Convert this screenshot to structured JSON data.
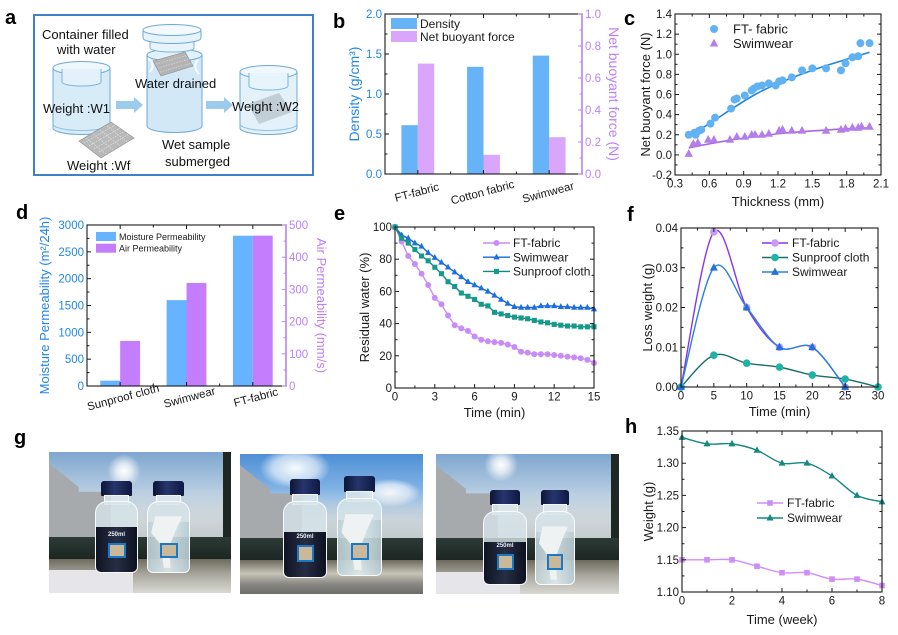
{
  "panel_letters": {
    "a": "a",
    "b": "b",
    "c": "c",
    "d": "d",
    "e": "e",
    "f": "f",
    "g": "g",
    "h": "h"
  },
  "panel_a": {
    "container_line1": "Container filled",
    "container_line2": "with water",
    "water_drained": "Water drained",
    "weight_w1": "Weight :W1",
    "weight_w2": "Weight :W2",
    "wet_sample_line1": "Wet sample",
    "wet_sample_line2": "submerged",
    "weight_wf": "Weight :Wf",
    "colors": {
      "border": "#3f80c6",
      "container": "#d6ebf8",
      "arrow": "#9ccbec",
      "fabric": "#b7b7b7"
    }
  },
  "panel_g": {
    "photos": [
      {
        "bottle_label": "250ml"
      },
      {
        "bottle_label": "250ml"
      },
      {
        "bottle_label": "250ml"
      }
    ]
  },
  "chart_data": [
    {
      "id": "b",
      "type": "bar",
      "title": "",
      "categories": [
        "FT-fabric",
        "Cotton fabric",
        "Swimwear"
      ],
      "series": [
        {
          "name": "Density",
          "axis": "left",
          "values": [
            0.61,
            1.34,
            1.48
          ],
          "color": "#66b3f8"
        },
        {
          "name": "Net buoyant force",
          "axis": "right",
          "values": [
            0.69,
            0.12,
            0.23
          ],
          "color": "#d9a6fb"
        }
      ],
      "xlabel": "",
      "ylabel": "Density (g/cm³)",
      "y2label": "Net buoyant force (N)",
      "ylim": [
        0,
        2.0
      ],
      "y2lim": [
        0,
        1.0
      ],
      "yticks": [
        "0.0",
        "0.5",
        "1.0",
        "1.5",
        "2.0"
      ],
      "y2ticks": [
        "0.0",
        "0.2",
        "0.4",
        "0.6",
        "0.8",
        "1.0"
      ],
      "ycolor": "#2286e6",
      "y2color": "#bb82f6",
      "grid": false,
      "legend": "top-left"
    },
    {
      "id": "c",
      "type": "scatter",
      "title": "",
      "xlabel": "Thickness (mm)",
      "ylabel": "Net buoyant force (N)",
      "xlim": [
        0.3,
        2.1
      ],
      "ylim": [
        -0.2,
        1.4
      ],
      "xticks": [
        "0.3",
        "0.6",
        "0.9",
        "1.2",
        "1.5",
        "1.8",
        "2.1"
      ],
      "yticks": [
        "-0.2",
        "0.0",
        "0.2",
        "0.4",
        "0.6",
        "0.8",
        "1.0",
        "1.2",
        "1.4"
      ],
      "grid": false,
      "legend": "top-left",
      "series": [
        {
          "name": "FT- fabric",
          "marker": "circle",
          "color": "#62b2f3",
          "fit_color": "#2384e0",
          "points": [
            [
              0.42,
              0.2
            ],
            [
              0.47,
              0.22
            ],
            [
              0.48,
              0.2
            ],
            [
              0.51,
              0.24
            ],
            [
              0.53,
              0.25
            ],
            [
              0.61,
              0.31
            ],
            [
              0.65,
              0.37
            ],
            [
              0.79,
              0.46
            ],
            [
              0.82,
              0.55
            ],
            [
              0.84,
              0.56
            ],
            [
              0.91,
              0.59
            ],
            [
              0.97,
              0.64
            ],
            [
              0.99,
              0.66
            ],
            [
              1.02,
              0.68
            ],
            [
              1.06,
              0.69
            ],
            [
              1.12,
              0.71
            ],
            [
              1.18,
              0.69
            ],
            [
              1.21,
              0.73
            ],
            [
              1.24,
              0.74
            ],
            [
              1.32,
              0.77
            ],
            [
              1.41,
              0.84
            ],
            [
              1.5,
              0.86
            ],
            [
              1.62,
              0.86
            ],
            [
              1.75,
              0.84
            ],
            [
              1.79,
              0.91
            ],
            [
              1.85,
              0.97
            ],
            [
              1.9,
              0.98
            ],
            [
              1.92,
              1.11
            ],
            [
              2.0,
              1.11
            ]
          ],
          "fit": [
            [
              0.42,
              0.19
            ],
            [
              0.6,
              0.31
            ],
            [
              0.8,
              0.46
            ],
            [
              1.0,
              0.6
            ],
            [
              1.2,
              0.71
            ],
            [
              1.4,
              0.8
            ],
            [
              1.6,
              0.88
            ],
            [
              1.8,
              0.95
            ],
            [
              2.0,
              1.02
            ]
          ]
        },
        {
          "name": "Swimwear",
          "marker": "triangle",
          "color": "#b57de9",
          "fit_color": "#a56ae4",
          "points": [
            [
              0.42,
              0.01
            ],
            [
              0.46,
              0.11
            ],
            [
              0.5,
              0.12
            ],
            [
              0.59,
              0.15
            ],
            [
              0.64,
              0.15
            ],
            [
              0.78,
              0.15
            ],
            [
              0.84,
              0.18
            ],
            [
              0.91,
              0.18
            ],
            [
              0.97,
              0.2
            ],
            [
              1.0,
              0.2
            ],
            [
              1.06,
              0.2
            ],
            [
              1.12,
              0.21
            ],
            [
              1.21,
              0.24
            ],
            [
              1.24,
              0.25
            ],
            [
              1.32,
              0.24
            ],
            [
              1.41,
              0.24
            ],
            [
              1.62,
              0.24
            ],
            [
              1.75,
              0.25
            ],
            [
              1.79,
              0.26
            ],
            [
              1.85,
              0.27
            ],
            [
              1.9,
              0.27
            ],
            [
              1.93,
              0.28
            ],
            [
              2.0,
              0.28
            ]
          ],
          "fit": [
            [
              0.42,
              0.07
            ],
            [
              0.6,
              0.11
            ],
            [
              0.8,
              0.15
            ],
            [
              1.0,
              0.18
            ],
            [
              1.2,
              0.21
            ],
            [
              1.4,
              0.23
            ],
            [
              1.6,
              0.245
            ],
            [
              1.8,
              0.26
            ],
            [
              2.0,
              0.27
            ]
          ]
        }
      ]
    },
    {
      "id": "d",
      "type": "bar",
      "title": "",
      "categories": [
        "Sunproof cloth",
        "Swimwear",
        "FT-fabric"
      ],
      "series": [
        {
          "name": "Moisture Permeability",
          "axis": "left",
          "values": [
            100,
            1600,
            2800
          ],
          "color": "#66b3ff"
        },
        {
          "name": "Air Permeability",
          "axis": "right",
          "values": [
            140,
            320,
            467
          ],
          "color": "#c47dfd"
        }
      ],
      "xlabel": "",
      "ylabel": "Moisture Permeability (m²/24h)",
      "y2label": "Air Permeability (mm/s)",
      "ylim": [
        0,
        3000
      ],
      "y2lim": [
        0,
        500
      ],
      "yticks": [
        "0",
        "500",
        "1000",
        "1500",
        "2000",
        "2500",
        "3000"
      ],
      "y2ticks": [
        "0",
        "100",
        "200",
        "300",
        "400",
        "500"
      ],
      "ycolor": "#2286e6",
      "y2color": "#bb82f6",
      "grid": false,
      "legend": "top-left"
    },
    {
      "id": "e",
      "type": "line",
      "title": "",
      "xlabel": "Time (min)",
      "ylabel": "Residual water (%)",
      "xlim": [
        0,
        15
      ],
      "ylim": [
        0,
        100
      ],
      "xticks": [
        "0",
        "3",
        "6",
        "9",
        "12",
        "15"
      ],
      "yticks": [
        "0",
        "20",
        "40",
        "60",
        "80",
        "100"
      ],
      "smooth": false,
      "grid": false,
      "legend": "top-right",
      "x": [
        0,
        0.5,
        1,
        1.5,
        2,
        2.5,
        3,
        3.5,
        4,
        4.5,
        5,
        5.5,
        6,
        6.5,
        7,
        7.5,
        8,
        8.5,
        9,
        9.5,
        10,
        10.5,
        11,
        11.5,
        12,
        12.5,
        13,
        13.5,
        14,
        14.5,
        15
      ],
      "series": [
        {
          "name": "FT-fabric",
          "marker": "circle",
          "color": "#c98cf7",
          "marker_color": "#c98cf7",
          "values": [
            100,
            91,
            82,
            77,
            71,
            64,
            56,
            52,
            45,
            39,
            37,
            35.5,
            32,
            30,
            29,
            28.5,
            28,
            27,
            25.5,
            22.5,
            22,
            21,
            21,
            21,
            20.5,
            20,
            19.5,
            19,
            18.5,
            17.5,
            15.5
          ]
        },
        {
          "name": "Swimwear",
          "marker": "triangle",
          "color": "#1565dc",
          "marker_color": "#1c6fe0",
          "values": [
            100,
            95,
            93,
            90,
            88,
            84,
            81,
            78,
            75,
            72,
            69,
            66,
            64,
            62,
            60,
            57.5,
            55,
            52.5,
            50.5,
            50,
            50,
            50,
            51,
            51,
            51,
            50.5,
            50.5,
            50,
            50,
            50,
            49
          ]
        },
        {
          "name": "Sunproof cloth",
          "marker": "square",
          "color": "#128a7e",
          "marker_color": "#149a8b",
          "values": [
            100,
            93,
            90,
            86,
            82,
            79,
            75,
            71,
            66,
            63,
            59,
            57,
            55,
            52,
            51,
            47,
            46,
            45,
            44,
            43.5,
            43,
            42,
            41,
            40.5,
            39.5,
            39,
            38.5,
            38.5,
            38,
            38,
            38
          ]
        }
      ]
    },
    {
      "id": "f",
      "type": "line",
      "title": "",
      "xlabel": "Time (min)",
      "ylabel": "Loss weight (g)",
      "xlim": [
        0,
        30
      ],
      "ylim": [
        0,
        0.04
      ],
      "xticks": [
        "0",
        "5",
        "10",
        "15",
        "20",
        "25",
        "30"
      ],
      "yticks": [
        "0.00",
        "0.01",
        "0.02",
        "0.03",
        "0.04"
      ],
      "smooth": true,
      "grid": false,
      "legend": "top-right",
      "series": [
        {
          "name": "FT-fabric",
          "marker": "circle",
          "color": "#8a34e6",
          "marker_color": "#c79af7",
          "x": [
            0,
            5,
            10,
            15,
            20,
            25
          ],
          "values": [
            0,
            0.039,
            0.02,
            0.01,
            0.01,
            0
          ]
        },
        {
          "name": "Sunproof cloth",
          "marker": "circle",
          "color": "#1a6f69",
          "marker_color": "#1fb3a6",
          "x": [
            0,
            5,
            10,
            15,
            20,
            25,
            30
          ],
          "values": [
            0,
            0.008,
            0.006,
            0.005,
            0.003,
            0.002,
            0
          ]
        },
        {
          "name": "Swimwear",
          "marker": "triangle",
          "color": "#2a7fe2",
          "marker_color": "#2272dc",
          "x": [
            0,
            5,
            10,
            15,
            20,
            25
          ],
          "values": [
            0,
            0.03,
            0.02,
            0.01,
            0.01,
            0
          ]
        }
      ]
    },
    {
      "id": "h",
      "type": "line",
      "title": "",
      "xlabel": "Time (week)",
      "ylabel": "Weight (g)",
      "xlim": [
        0,
        8
      ],
      "ylim": [
        1.1,
        1.35
      ],
      "xticks": [
        "0",
        "2",
        "4",
        "6",
        "8"
      ],
      "yticks": [
        "1.10",
        "1.15",
        "1.20",
        "1.25",
        "1.30",
        "1.35"
      ],
      "smooth": true,
      "grid": false,
      "legend": "center-right",
      "x": [
        0,
        1,
        2,
        3,
        4,
        5,
        6,
        7,
        8
      ],
      "series": [
        {
          "name": "FT-fabric",
          "marker": "square",
          "color": "#d08ef8",
          "marker_color": "#cf8ef7",
          "values": [
            1.15,
            1.15,
            1.15,
            1.14,
            1.13,
            1.13,
            1.12,
            1.12,
            1.11
          ]
        },
        {
          "name": "Swimwear",
          "marker": "triangle",
          "color": "#13897f",
          "marker_color": "#13897f",
          "values": [
            1.34,
            1.33,
            1.33,
            1.32,
            1.3,
            1.3,
            1.28,
            1.25,
            1.24
          ]
        }
      ]
    }
  ]
}
